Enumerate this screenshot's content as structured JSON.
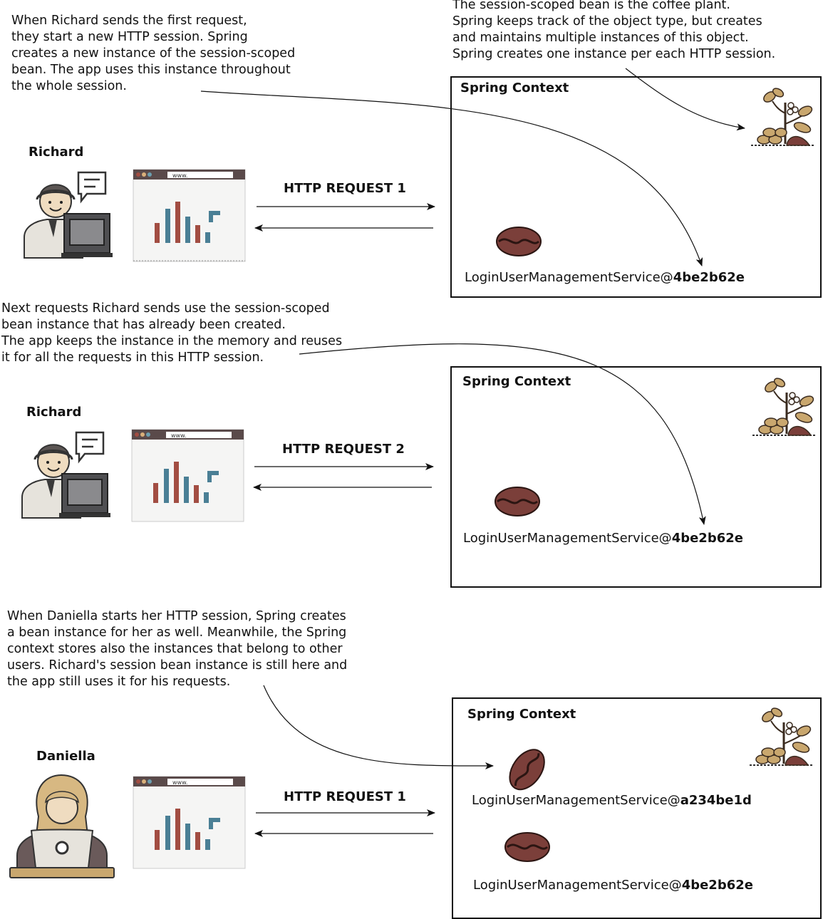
{
  "notes": {
    "first_request": "When Richard sends the first request,\nthey start a new HTTP session. Spring\ncreates a new instance of the session-scoped\nbean. The app uses this instance throughout\nthe whole session.",
    "coffee_plant": "The session-scoped bean is the coffee plant.\nSpring keeps track of the object type, but creates\nand maintains multiple instances of this object.\nSpring creates one instance per each HTTP session.",
    "next_requests": "Next requests Richard sends use the session-scoped\nbean instance that has already been created.\nThe app keeps the instance in the memory and reuses\nit for all the requests in this HTTP session.",
    "daniella_session": "When Daniella starts her HTTP session, Spring creates\na bean instance for her as well. Meanwhile, the Spring\ncontext stores also the instances that belong to other\nusers. Richard's session bean instance is still here and\nthe app still uses it for his requests."
  },
  "scenes": [
    {
      "user": "Richard",
      "request_label": "HTTP REQUEST 1",
      "browser_url": "www.",
      "context_title": "Spring Context",
      "beans": [
        {
          "prefix": "LoginUserManagementService@",
          "id": "4be2b62e"
        }
      ]
    },
    {
      "user": "Richard",
      "request_label": "HTTP REQUEST 2",
      "browser_url": "www.",
      "context_title": "Spring Context",
      "beans": [
        {
          "prefix": "LoginUserManagementService@",
          "id": "4be2b62e"
        }
      ]
    },
    {
      "user": "Daniella",
      "request_label": "HTTP REQUEST 1",
      "browser_url": "www.",
      "context_title": "Spring Context",
      "beans": [
        {
          "prefix": "LoginUserManagementService@",
          "id": "a234be1d"
        },
        {
          "prefix": "LoginUserManagementService@",
          "id": "4be2b62e"
        }
      ]
    }
  ],
  "colors": {
    "bean": "#7b3f3a",
    "bean_crease": "#2b1512",
    "bar_red": "#a24d42",
    "bar_blue": "#4a7f95",
    "browser_bar": "#5a4a4a",
    "plant_leaf": "#c9a76e",
    "skin": "#efdcc0",
    "hair_dark": "#5b5553",
    "hair_blonde": "#d7b882",
    "shirt": "#e6e3dc",
    "monitor": "#4f4f52"
  }
}
